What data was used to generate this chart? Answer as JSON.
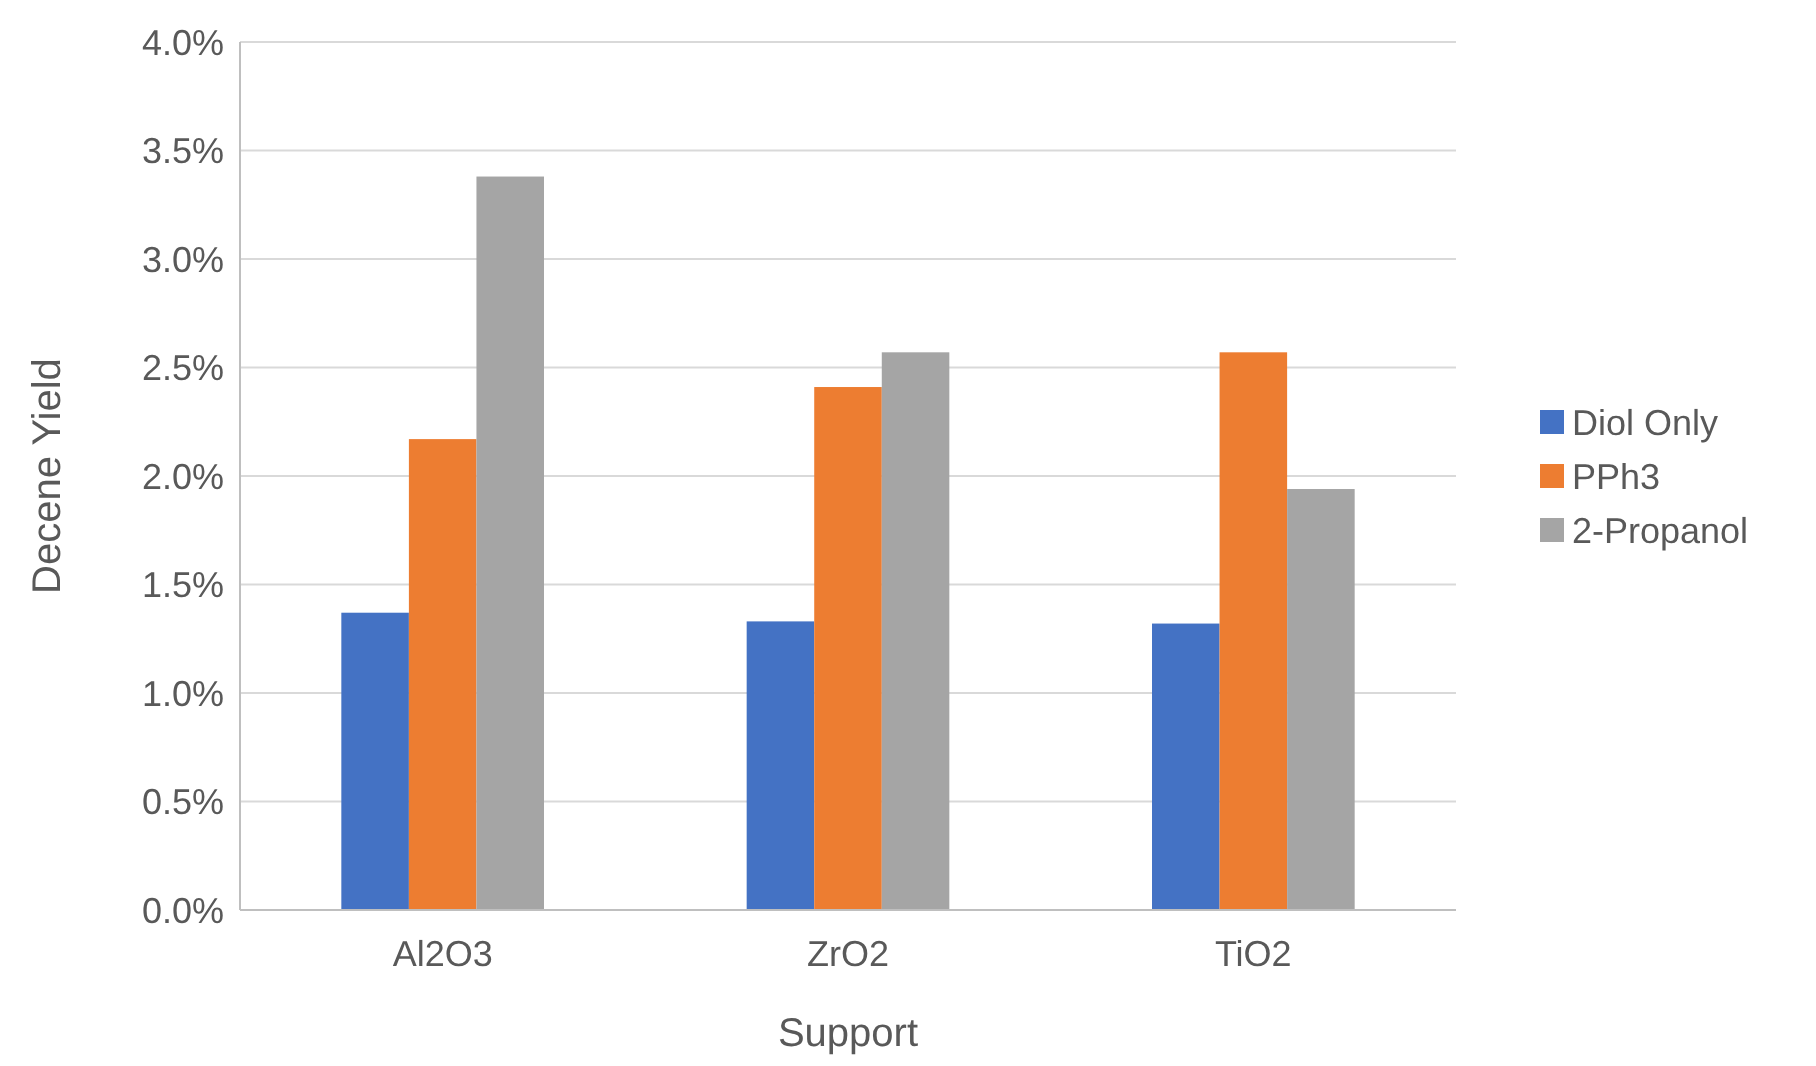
{
  "chart_data": {
    "type": "bar",
    "xlabel": "Support",
    "ylabel": "Decene Yield",
    "categories": [
      "Al2O3",
      "ZrO2",
      "TiO2"
    ],
    "series": [
      {
        "name": "Diol Only",
        "color": "#4472c4",
        "values": [
          1.37,
          1.33,
          1.32
        ]
      },
      {
        "name": "PPh3",
        "color": "#ed7d31",
        "values": [
          2.17,
          2.41,
          2.57
        ]
      },
      {
        "name": "2-Propanol",
        "color": "#a5a5a5",
        "values": [
          3.38,
          2.57,
          1.94
        ]
      }
    ],
    "ylim": [
      0,
      4
    ],
    "yticks": [
      {
        "value": 0,
        "label": "0.0%"
      },
      {
        "value": 0.5,
        "label": "0.5%"
      },
      {
        "value": 1,
        "label": "1.0%"
      },
      {
        "value": 1.5,
        "label": "1.5%"
      },
      {
        "value": 2,
        "label": "2.0%"
      },
      {
        "value": 2.5,
        "label": "2.5%"
      },
      {
        "value": 3,
        "label": "3.0%"
      },
      {
        "value": 3.5,
        "label": "3.5%"
      },
      {
        "value": 4,
        "label": "4.0%"
      }
    ],
    "grid": "y",
    "legend": "right"
  }
}
